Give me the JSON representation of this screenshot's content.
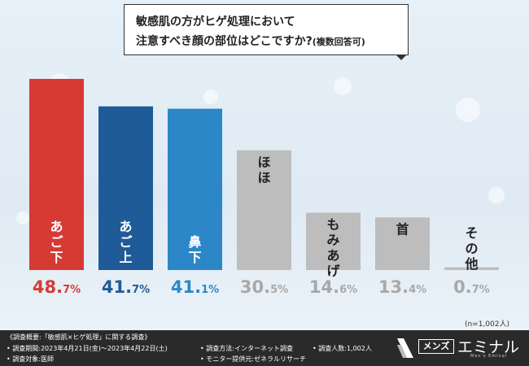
{
  "title": {
    "line1": "敏感肌の方がヒゲ処理において",
    "line2_main": "注意すべき顔の部位はどこですか?",
    "line2_note": "(複数回答可)"
  },
  "sample_note": "(n=1,002人)",
  "chart_data": {
    "type": "bar",
    "categories": [
      "あご下",
      "あご上",
      "鼻下",
      "ほほ",
      "もみあげ",
      "首",
      "その他"
    ],
    "values": [
      48.7,
      41.7,
      41.1,
      30.5,
      14.6,
      13.4,
      0.7
    ],
    "value_display": [
      {
        "int": "48.",
        "dec": "7%"
      },
      {
        "int": "41.",
        "dec": "7%"
      },
      {
        "int": "41.",
        "dec": "1%"
      },
      {
        "int": "30.",
        "dec": "5%"
      },
      {
        "int": "14.",
        "dec": "6%"
      },
      {
        "int": "13.",
        "dec": "4%"
      },
      {
        "int": "0.",
        "dec": "7%"
      }
    ],
    "colors": [
      "#d63a33",
      "#1f5b98",
      "#2b87c8",
      "#bdbdbd",
      "#bdbdbd",
      "#bdbdbd",
      "#bdbdbd"
    ],
    "value_colors": [
      "#d63a33",
      "#1f5b98",
      "#2b87c8",
      "#a8a8a8",
      "#a8a8a8",
      "#a8a8a8",
      "#a8a8a8"
    ],
    "ylim": [
      0,
      50
    ],
    "grid": false
  },
  "footer": {
    "heading": "《調査概要:「敏感肌×ヒゲ処理」に関する調査》",
    "period": "• 調査期間:2023年4月21日(金)〜2023年4月22日(土)",
    "method": "• 調査方法:インターネット調査",
    "count": "• 調査人数:1,002人",
    "target": "• 調査対象:医師",
    "provider": "• モニター提供元:ゼネラルリサーチ"
  },
  "logo": {
    "mens": "メンズ",
    "brand": "エミナル",
    "sub": "Men's Eminal"
  }
}
